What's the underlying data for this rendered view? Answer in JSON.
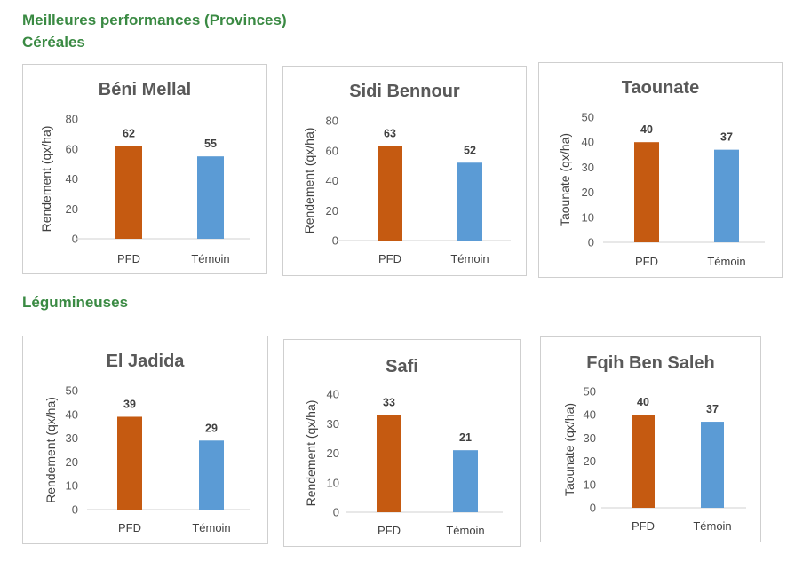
{
  "page": {
    "title": "Meilleures performances (Provinces)",
    "section_cereals": "Céréales",
    "section_legumes": "Légumineuses"
  },
  "colors": {
    "pfd": "#c55a11",
    "temoin": "#5b9bd5",
    "axis": "#d9d9d9",
    "heading": "#3a8a43"
  },
  "chart_data": [
    {
      "type": "bar",
      "title": "Béni Mellal",
      "ylabel": "Rendement (qx/ha)",
      "categories": [
        "PFD",
        "Témoin"
      ],
      "values": [
        62,
        55
      ],
      "ylim": [
        0,
        80
      ],
      "yticks": [
        0,
        20,
        40,
        60,
        80
      ]
    },
    {
      "type": "bar",
      "title": "Sidi Bennour",
      "ylabel": "Rendement (qx/ha)",
      "categories": [
        "PFD",
        "Témoin"
      ],
      "values": [
        63,
        52
      ],
      "ylim": [
        0,
        80
      ],
      "yticks": [
        0,
        20,
        40,
        60,
        80
      ]
    },
    {
      "type": "bar",
      "title": "Taounate",
      "ylabel": "Taounate (qx/ha)",
      "categories": [
        "PFD",
        "Témoin"
      ],
      "values": [
        40,
        37
      ],
      "ylim": [
        0,
        50
      ],
      "yticks": [
        0,
        10,
        20,
        30,
        40,
        50
      ]
    },
    {
      "type": "bar",
      "title": "El Jadida",
      "ylabel": "Rendement (qx/ha)",
      "categories": [
        "PFD",
        "Témoin"
      ],
      "values": [
        39,
        29
      ],
      "ylim": [
        0,
        50
      ],
      "yticks": [
        0,
        10,
        20,
        30,
        40,
        50
      ]
    },
    {
      "type": "bar",
      "title": "Safi",
      "ylabel": "Rendement (qx/ha)",
      "categories": [
        "PFD",
        "Témoin"
      ],
      "values": [
        33,
        21
      ],
      "ylim": [
        0,
        40
      ],
      "yticks": [
        0,
        10,
        20,
        30,
        40
      ]
    },
    {
      "type": "bar",
      "title": "Fqih Ben Saleh",
      "ylabel": "Taounate (qx/ha)",
      "categories": [
        "PFD",
        "Témoin"
      ],
      "values": [
        40,
        37
      ],
      "ylim": [
        0,
        50
      ],
      "yticks": [
        0,
        10,
        20,
        30,
        40,
        50
      ]
    }
  ]
}
